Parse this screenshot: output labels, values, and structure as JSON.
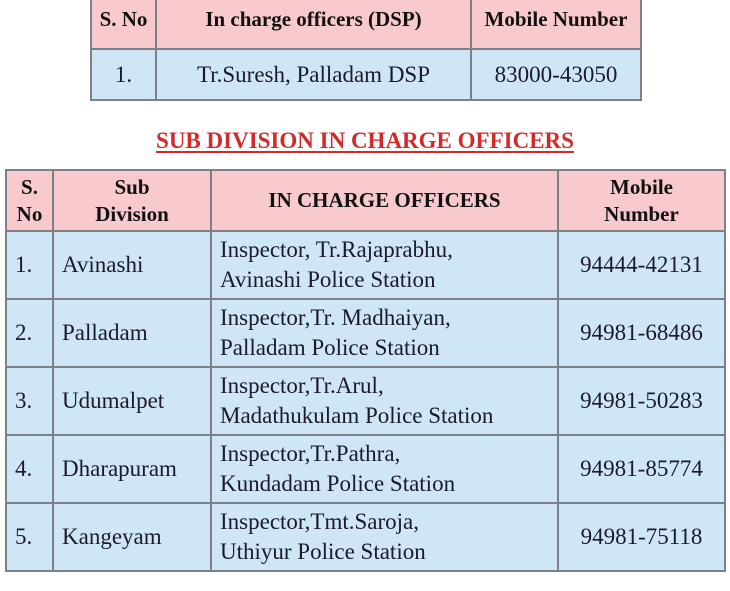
{
  "dsp_table": {
    "headers": [
      "S. No",
      "In charge officers (DSP)",
      "Mobile Number"
    ],
    "rows": [
      {
        "sno": "1.",
        "officer": "Tr.Suresh, Palladam DSP",
        "mobile": "83000-43050"
      }
    ]
  },
  "section_title": "SUB DIVISION IN CHARGE OFFICERS",
  "sub_table": {
    "headers": {
      "sno": [
        "S.",
        "No"
      ],
      "division": [
        "Sub",
        "Division"
      ],
      "officers": "IN CHARGE OFFICERS",
      "mobile": [
        "Mobile",
        "Number"
      ]
    },
    "rows": [
      {
        "sno": "1.",
        "division": "Avinashi",
        "officer_line1": "Inspector, Tr.Rajaprabhu,",
        "officer_line2": "Avinashi Police Station",
        "mobile": "94444-42131"
      },
      {
        "sno": "2.",
        "division": "Palladam",
        "officer_line1": "Inspector,Tr. Madhaiyan,",
        "officer_line2": "Palladam Police Station",
        "mobile": "94981-68486"
      },
      {
        "sno": "3.",
        "division": "Udumalpet",
        "officer_line1": "Inspector,Tr.Arul,",
        "officer_line2": "Madathukulam Police Station",
        "mobile": "94981-50283"
      },
      {
        "sno": "4.",
        "division": "Dharapuram",
        "officer_line1": "Inspector,Tr.Pathra,",
        "officer_line2": "Kundadam Police Station",
        "mobile": "94981-85774"
      },
      {
        "sno": "5.",
        "division": "Kangeyam",
        "officer_line1": "Inspector,Tmt.Saroja,",
        "officer_line2": "Uthiyur Police Station",
        "mobile": "94981-75118"
      }
    ]
  },
  "colors": {
    "header_bg": "#f8c9cd",
    "row_bg": "#cfe6f6",
    "title": "#d22a2a"
  }
}
